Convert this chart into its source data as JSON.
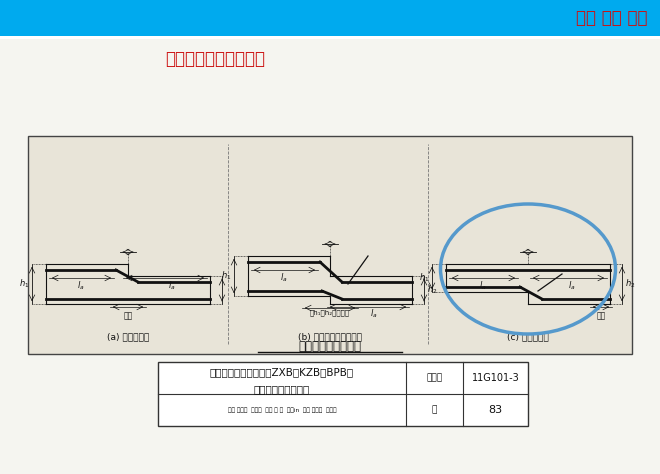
{
  "bg_color": "#f5f5f0",
  "header_color": "#00aaee",
  "header_text": "明势 融合 笃行",
  "header_text_color": "#cc1111",
  "title_text": "图集对于该问题的规定",
  "title_color": "#cc1111",
  "title_fontsize": 12,
  "label_a": "(a) 板顶有高差",
  "label_b": "(b) 板顶、板底均有高差",
  "label_c": "(c) 板底有高差",
  "caption": "变截面部位钢筋构造",
  "table_title1": "平板式筏形基础平板（ZXB、KZB、BPB）",
  "table_title2": "变截面部位钢筋构造",
  "table_label1": "图集号",
  "table_value1": "11G101-3",
  "table_label2": "页",
  "table_value2": "83",
  "table_bottom": "审核 尤天直  高义宝  校对 单 磊  华忠in  设计 何惠明  伍章明",
  "line_color": "#111111",
  "ellipse_color": "#5599cc",
  "diagram_box_color": "#e8e4d8"
}
